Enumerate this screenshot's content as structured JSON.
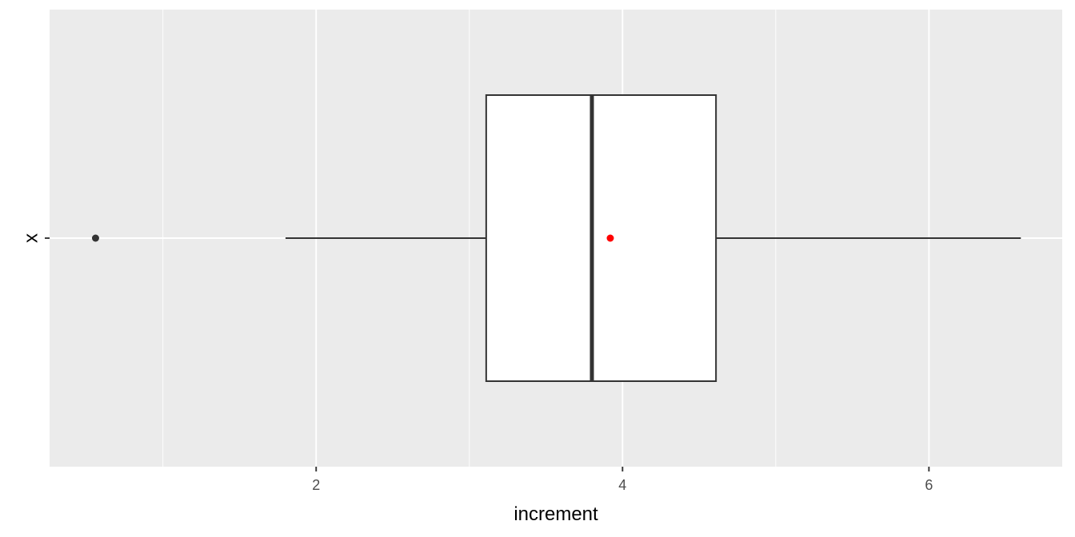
{
  "chart_data": {
    "type": "boxplot",
    "orientation": "horizontal",
    "xlabel": "increment",
    "ylabel": "",
    "categories": [
      "x"
    ],
    "x_ticks": [
      2,
      4,
      6
    ],
    "x_minor_ticks": [
      1,
      3,
      5
    ],
    "xlim": [
      0.26,
      6.87
    ],
    "grid": true,
    "boxes": [
      {
        "category": "x",
        "whisker_low": 1.8,
        "q1": 3.11,
        "median": 3.8,
        "q3": 4.61,
        "whisker_high": 6.6,
        "mean": 3.92,
        "outliers": [
          0.56
        ]
      }
    ]
  },
  "colors": {
    "panel_background": "#EBEBEB",
    "grid": "#FFFFFF",
    "box_fill": "#FFFFFF",
    "box_outline": "#333333",
    "outlier": "#333333",
    "mean_point": "#FF0000",
    "tick_label": "#4D4D4D",
    "axis_title": "#000000"
  }
}
